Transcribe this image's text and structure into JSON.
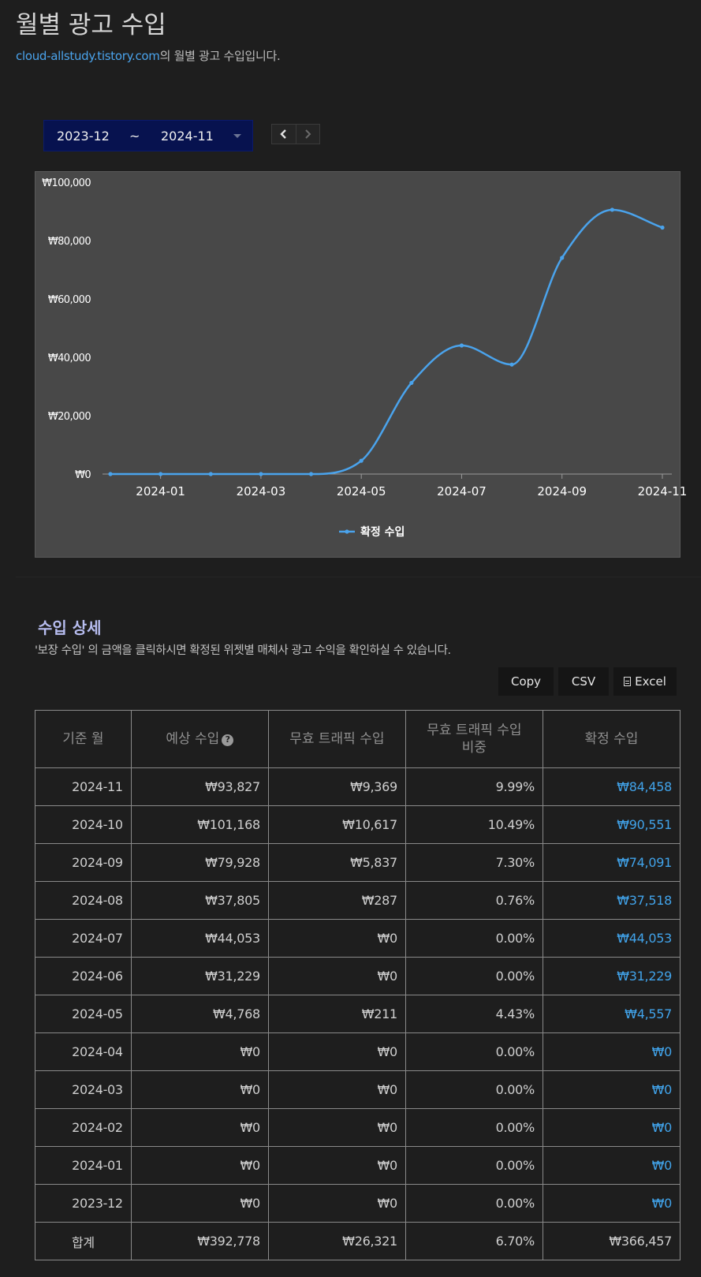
{
  "header": {
    "title": "월별 광고 수입",
    "site_link": "cloud-allstudy.tistory.com",
    "subtitle_suffix": "의 월별 광고 수입입니다."
  },
  "date_range": {
    "from": "2023-12",
    "separator": "~",
    "to": "2024-11"
  },
  "nav": {
    "prev_icon": "chevron-left-icon",
    "next_icon": "chevron-right-icon"
  },
  "chart_data": {
    "type": "line",
    "x": [
      "2023-12",
      "2024-01",
      "2024-02",
      "2024-03",
      "2024-04",
      "2024-05",
      "2024-06",
      "2024-07",
      "2024-08",
      "2024-09",
      "2024-10",
      "2024-11"
    ],
    "x_tick_labels": [
      "2024-01",
      "2024-03",
      "2024-05",
      "2024-07",
      "2024-09",
      "2024-11"
    ],
    "y_tick_labels": [
      "₩0",
      "₩20,000",
      "₩40,000",
      "₩60,000",
      "₩80,000",
      "₩100,000"
    ],
    "series": [
      {
        "name": "확정 수입",
        "values": [
          0,
          0,
          0,
          0,
          0,
          4557,
          31229,
          44053,
          37518,
          74091,
          90551,
          84458
        ],
        "color": "#4aa3ec"
      }
    ],
    "ylim": [
      0,
      100000
    ],
    "grid": false,
    "smooth": true,
    "legend_position": "bottom-center",
    "background": "#484848"
  },
  "details": {
    "title": "수입 상세",
    "description": "'보장 수입' 의 금액을 클릭하시면 확정된 위젯별 매체사 광고 수익을 확인하실 수 있습니다.",
    "buttons": {
      "copy": "Copy",
      "csv": "CSV",
      "excel": "Excel"
    },
    "columns": [
      "기준 월",
      "예상 수입",
      "무효 트래픽 수입",
      "무효 트래픽 수입\n비중",
      "확정 수입"
    ],
    "rows": [
      [
        "2024-11",
        "₩93,827",
        "₩9,369",
        "9.99%",
        "₩84,458"
      ],
      [
        "2024-10",
        "₩101,168",
        "₩10,617",
        "10.49%",
        "₩90,551"
      ],
      [
        "2024-09",
        "₩79,928",
        "₩5,837",
        "7.30%",
        "₩74,091"
      ],
      [
        "2024-08",
        "₩37,805",
        "₩287",
        "0.76%",
        "₩37,518"
      ],
      [
        "2024-07",
        "₩44,053",
        "₩0",
        "0.00%",
        "₩44,053"
      ],
      [
        "2024-06",
        "₩31,229",
        "₩0",
        "0.00%",
        "₩31,229"
      ],
      [
        "2024-05",
        "₩4,768",
        "₩211",
        "4.43%",
        "₩4,557"
      ],
      [
        "2024-04",
        "₩0",
        "₩0",
        "0.00%",
        "₩0"
      ],
      [
        "2024-03",
        "₩0",
        "₩0",
        "0.00%",
        "₩0"
      ],
      [
        "2024-02",
        "₩0",
        "₩0",
        "0.00%",
        "₩0"
      ],
      [
        "2024-01",
        "₩0",
        "₩0",
        "0.00%",
        "₩0"
      ],
      [
        "2023-12",
        "₩0",
        "₩0",
        "0.00%",
        "₩0"
      ]
    ],
    "total": [
      "합계",
      "₩392,778",
      "₩26,321",
      "6.70%",
      "₩366,457"
    ],
    "link_color": "#41a3ea"
  }
}
